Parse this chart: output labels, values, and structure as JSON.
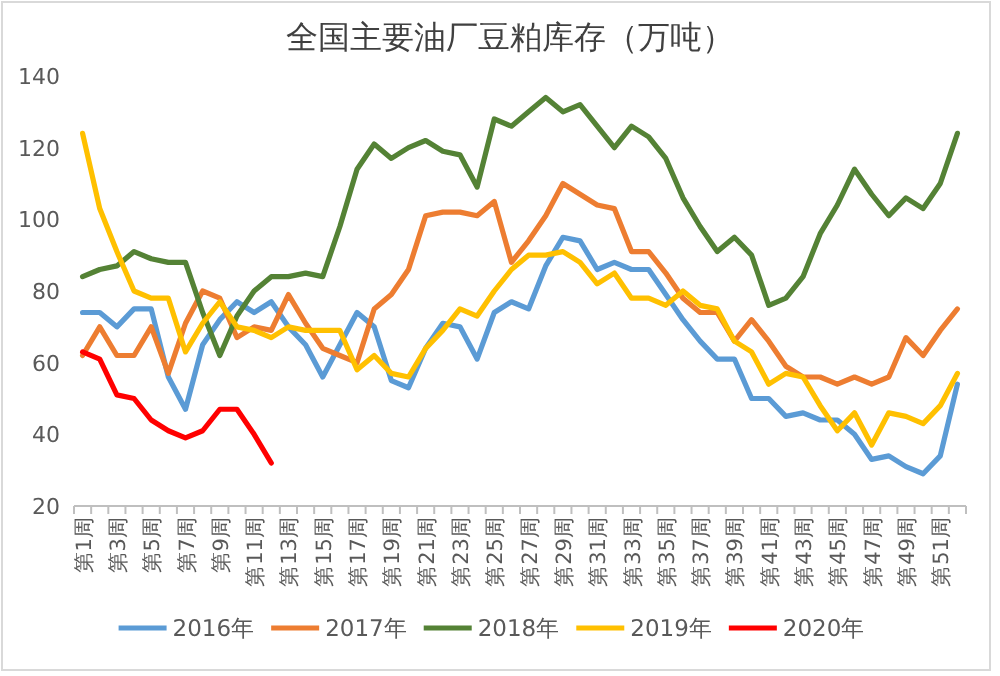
{
  "chart_data": {
    "type": "line",
    "title": "全国主要油厂豆粕库存（万吨）",
    "categories": [
      "第1周",
      null,
      "第3周",
      null,
      "第5周",
      null,
      "第7周",
      null,
      "第9周",
      null,
      "第11周",
      null,
      "第13周",
      null,
      "第15周",
      null,
      "第17周",
      null,
      "第19周",
      null,
      "第21周",
      null,
      "第23周",
      null,
      "第25周",
      null,
      "第27周",
      null,
      "第29周",
      null,
      "第31周",
      null,
      "第33周",
      null,
      "第35周",
      null,
      "第37周",
      null,
      "第39周",
      null,
      "第41周",
      null,
      "第43周",
      null,
      "第45周",
      null,
      "第47周",
      null,
      "第49周",
      null,
      "第51周",
      null
    ],
    "series": [
      {
        "name": "2016年",
        "color": "#5b9bd5",
        "values": [
          74,
          74,
          70,
          75,
          75,
          56,
          47,
          65,
          72,
          77,
          74,
          77,
          70,
          65,
          56,
          65,
          74,
          70,
          55,
          53,
          64,
          71,
          70,
          61,
          74,
          77,
          75,
          87,
          95,
          94,
          86,
          88,
          86,
          86,
          79,
          72,
          66,
          61,
          61,
          50,
          50,
          45,
          46,
          44,
          44,
          40,
          33,
          34,
          31,
          29,
          34,
          54
        ]
      },
      {
        "name": "2017年",
        "color": "#ed7d31",
        "values": [
          62,
          70,
          62,
          62,
          70,
          57,
          71,
          80,
          78,
          67,
          70,
          69,
          79,
          71,
          64,
          62,
          60,
          75,
          79,
          86,
          101,
          102,
          102,
          101,
          105,
          88,
          94,
          101,
          110,
          107,
          104,
          103,
          91,
          91,
          85,
          78,
          74,
          74,
          66,
          72,
          66,
          59,
          56,
          56,
          54,
          56,
          54,
          56,
          67,
          62,
          69,
          75
        ]
      },
      {
        "name": "2018年",
        "color": "#548235",
        "values": [
          84,
          86,
          87,
          91,
          89,
          88,
          88,
          74,
          62,
          73,
          80,
          84,
          84,
          85,
          84,
          98,
          114,
          121,
          117,
          120,
          122,
          119,
          118,
          109,
          128,
          126,
          130,
          134,
          130,
          132,
          126,
          120,
          126,
          123,
          117,
          106,
          98,
          91,
          95,
          90,
          76,
          78,
          84,
          96,
          104,
          114,
          107,
          101,
          106,
          103,
          110,
          124
        ]
      },
      {
        "name": "2019年",
        "color": "#ffc000",
        "values": [
          124,
          103,
          91,
          80,
          78,
          78,
          63,
          71,
          77,
          70,
          69,
          67,
          70,
          69,
          69,
          69,
          58,
          62,
          57,
          56,
          64,
          69,
          75,
          73,
          80,
          86,
          90,
          90,
          91,
          88,
          82,
          85,
          78,
          78,
          76,
          80,
          76,
          75,
          66,
          63,
          54,
          57,
          56,
          48,
          41,
          46,
          37,
          46,
          45,
          43,
          48,
          57
        ]
      },
      {
        "name": "2020年",
        "color": "#ff0000",
        "values": [
          63,
          61,
          51,
          50,
          44,
          41,
          39,
          41,
          47,
          47,
          40,
          32,
          null,
          null,
          null,
          null,
          null,
          null,
          null,
          null,
          null,
          null,
          null,
          null,
          null,
          null,
          null,
          null,
          null,
          null,
          null,
          null,
          null,
          null,
          null,
          null,
          null,
          null,
          null,
          null,
          null,
          null,
          null,
          null,
          null,
          null,
          null,
          null,
          null,
          null,
          null,
          null
        ]
      }
    ],
    "ylim": [
      20,
      140
    ],
    "yticks": [
      20,
      40,
      60,
      80,
      100,
      120,
      140
    ],
    "grid": false,
    "legend": "bottom"
  }
}
